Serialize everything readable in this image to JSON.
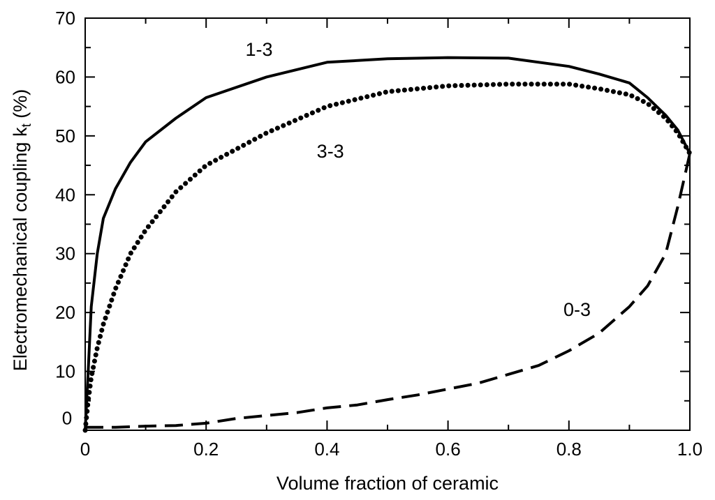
{
  "chart_data": {
    "type": "line",
    "xlabel": "Volume fraction of ceramic",
    "ylabel_main": "Electromechanical coupling k",
    "ylabel_sub": "t",
    "ylabel_unit": " (%)",
    "xlim": [
      0,
      1.0
    ],
    "ylim": [
      0,
      70
    ],
    "x_ticks": [
      "0",
      "0.2",
      "0.4",
      "0.6",
      "0.8",
      "1.0"
    ],
    "x_tick_values": [
      0,
      0.2,
      0.4,
      0.6,
      0.8,
      1.0
    ],
    "y_ticks": [
      "0",
      "10",
      "20",
      "30",
      "40",
      "50",
      "60",
      "70"
    ],
    "y_tick_values": [
      0,
      10,
      20,
      30,
      40,
      50,
      60,
      70
    ],
    "grid": false,
    "series": [
      {
        "name": "1-3",
        "style": "solid",
        "x": [
          0.0,
          0.005,
          0.01,
          0.02,
          0.03,
          0.05,
          0.075,
          0.1,
          0.15,
          0.2,
          0.3,
          0.4,
          0.5,
          0.6,
          0.7,
          0.8,
          0.85,
          0.9,
          0.93,
          0.96,
          0.98,
          1.0
        ],
        "y": [
          0.0,
          10.0,
          21.0,
          30.0,
          36.0,
          41.0,
          45.5,
          49.0,
          53.0,
          56.5,
          60.0,
          62.5,
          63.1,
          63.3,
          63.2,
          61.8,
          60.5,
          59.0,
          56.5,
          53.5,
          51.0,
          47.0
        ]
      },
      {
        "name": "3-3",
        "style": "dotted",
        "x": [
          0.0,
          0.005,
          0.01,
          0.02,
          0.03,
          0.05,
          0.075,
          0.1,
          0.15,
          0.2,
          0.3,
          0.4,
          0.5,
          0.6,
          0.7,
          0.8,
          0.85,
          0.9,
          0.93,
          0.96,
          0.98,
          1.0
        ],
        "y": [
          0.0,
          5.0,
          9.0,
          14.0,
          18.0,
          24.0,
          30.0,
          34.0,
          40.5,
          45.0,
          50.5,
          55.0,
          57.5,
          58.5,
          58.8,
          58.8,
          58.0,
          57.0,
          55.5,
          53.0,
          50.5,
          47.0
        ]
      },
      {
        "name": "0-3",
        "style": "dashed",
        "x": [
          0.0,
          0.05,
          0.1,
          0.15,
          0.2,
          0.25,
          0.3,
          0.35,
          0.4,
          0.45,
          0.5,
          0.55,
          0.6,
          0.65,
          0.7,
          0.75,
          0.8,
          0.85,
          0.9,
          0.93,
          0.96,
          0.98,
          1.0
        ],
        "y": [
          0.5,
          0.5,
          0.7,
          0.8,
          1.2,
          2.0,
          2.5,
          3.0,
          3.8,
          4.3,
          5.2,
          6.0,
          7.0,
          8.0,
          9.5,
          11.0,
          13.5,
          16.5,
          21.0,
          24.5,
          30.0,
          38.0,
          47.0
        ]
      }
    ],
    "annotations": [
      {
        "text": "1-3",
        "x": 0.265,
        "y": 64.8
      },
      {
        "text": "3-3",
        "x": 0.383,
        "y": 47.5
      },
      {
        "text": "0-3",
        "x": 0.791,
        "y": 20.6
      },
      {
        "text": "0",
        "x": -0.03,
        "y": 2.2
      }
    ]
  }
}
